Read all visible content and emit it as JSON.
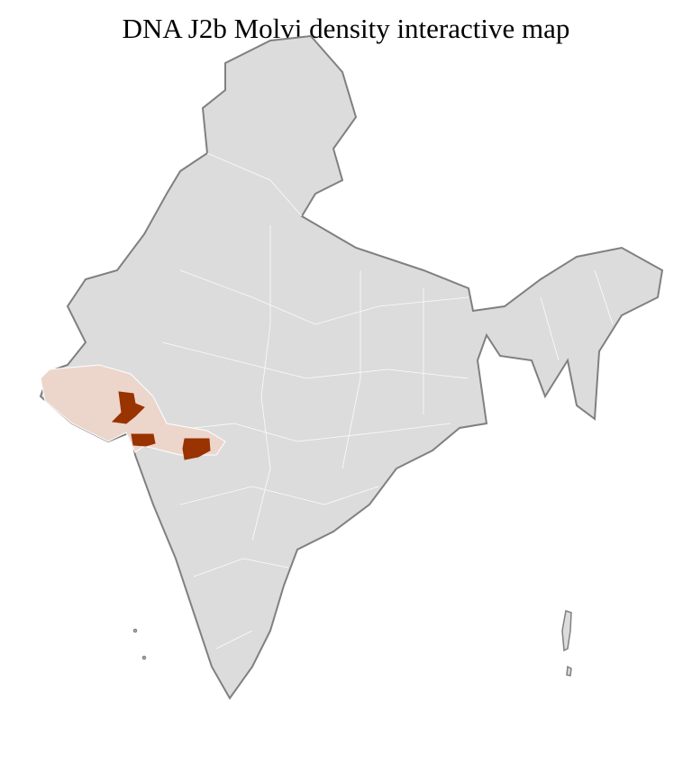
{
  "title": "DNA J2b Molvi density interactive map",
  "colors": {
    "no_data": "#dcdcdc",
    "border": "#808080",
    "district_line": "#ffffff",
    "low_density": "#ecd6cc",
    "high_density": "#993300"
  },
  "regions": [
    {
      "level": "low",
      "area": "Gujarat"
    },
    {
      "level": "high",
      "area": "central Gujarat district"
    },
    {
      "level": "high",
      "area": "south Gujarat district"
    },
    {
      "level": "high",
      "area": "north Maharashtra district"
    }
  ]
}
